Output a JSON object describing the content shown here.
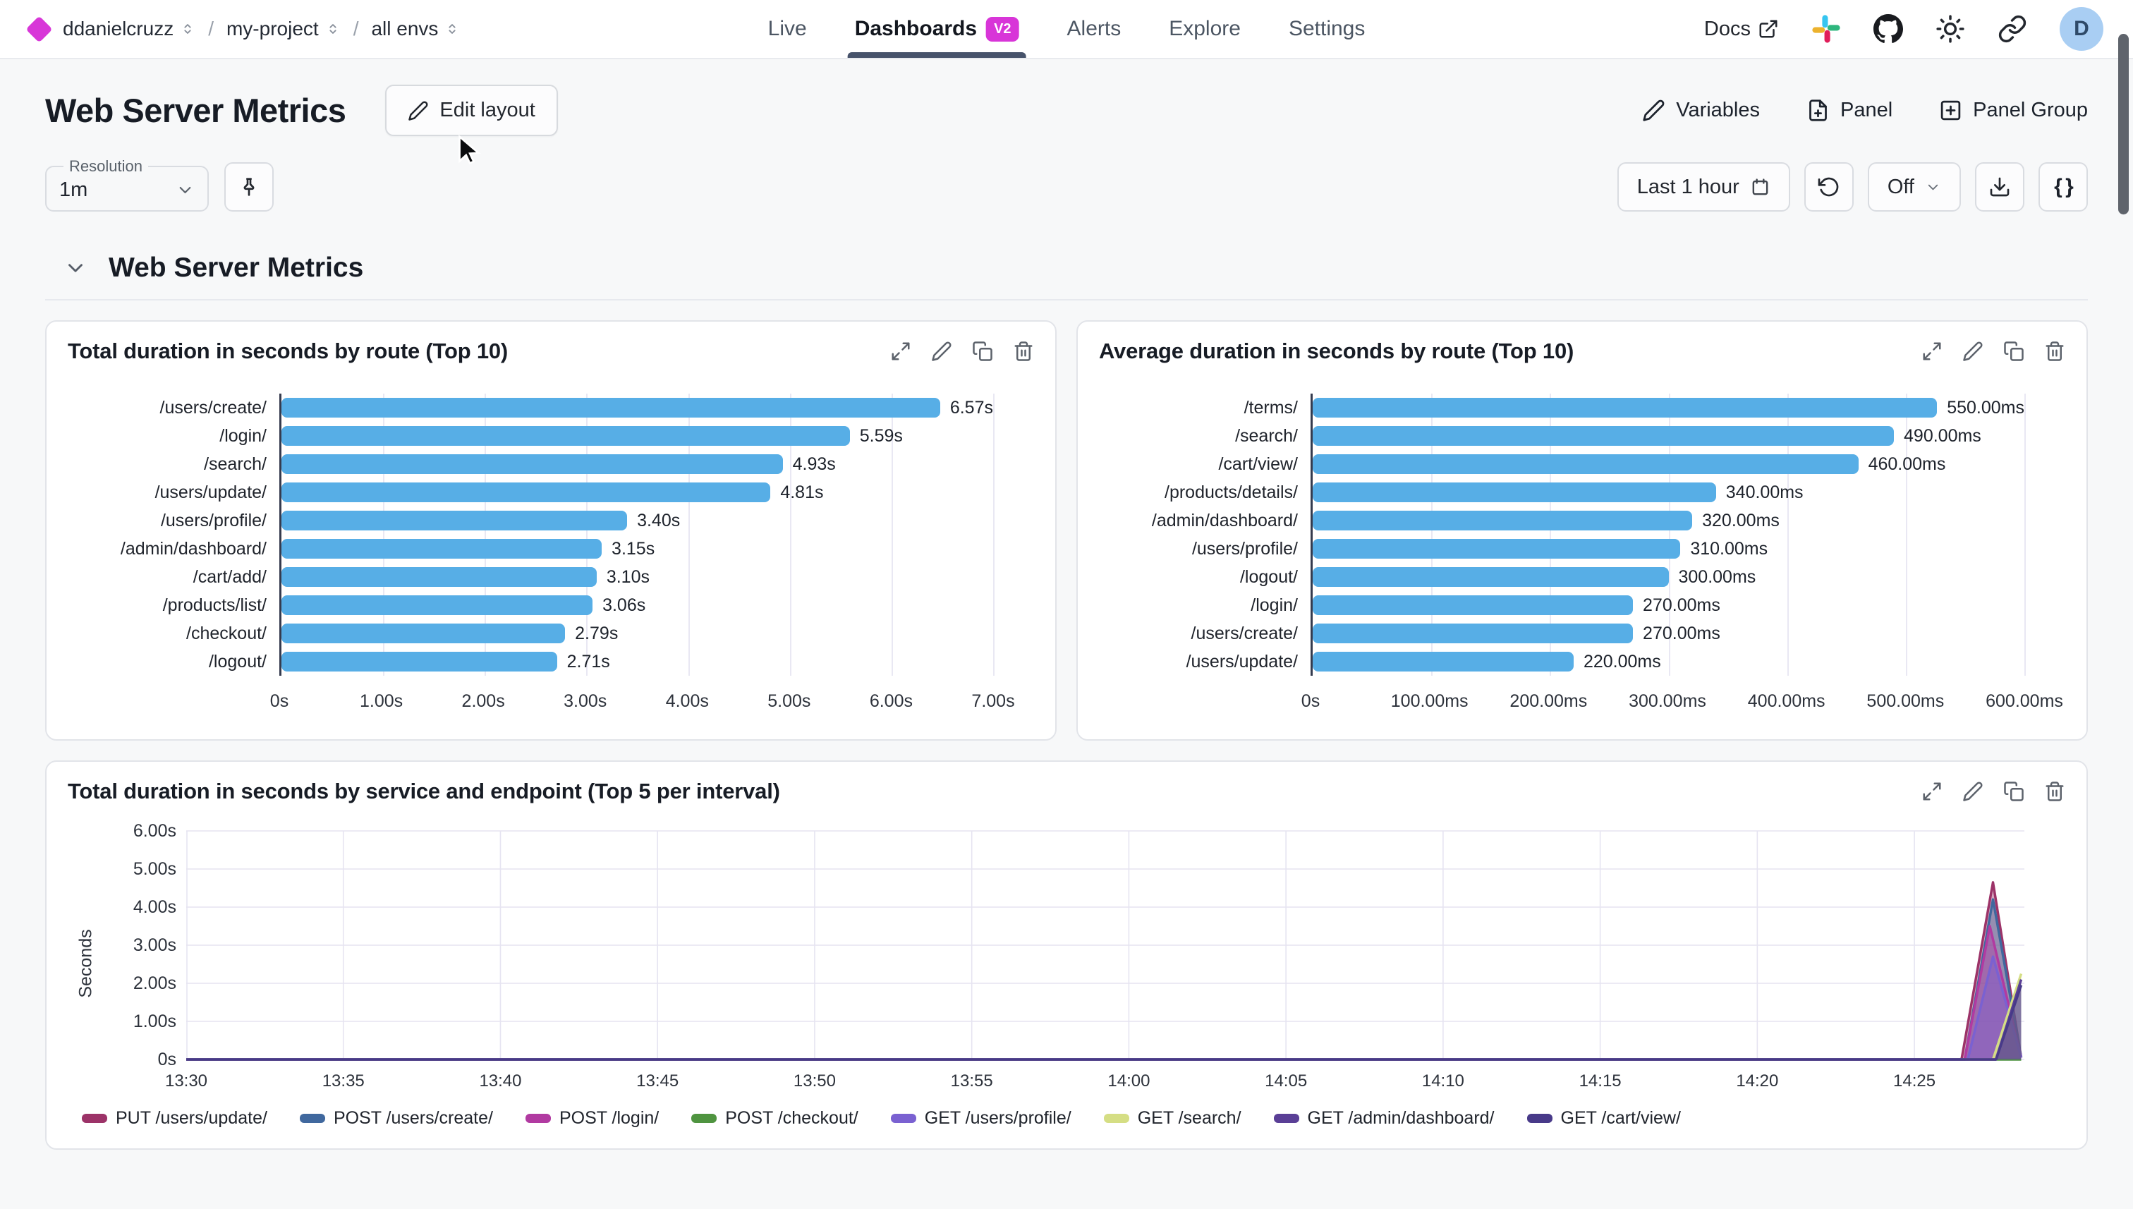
{
  "topbar": {
    "breadcrumb": [
      {
        "label": "ddanielcruzz"
      },
      {
        "label": "my-project"
      },
      {
        "label": "all envs"
      }
    ],
    "nav": {
      "items": [
        "Live",
        "Dashboards",
        "Alerts",
        "Explore",
        "Settings"
      ],
      "active": "Dashboards",
      "badge": "V2"
    },
    "docs_label": "Docs",
    "icons": [
      "external-link-icon",
      "slack-icon",
      "github-icon",
      "theme-sun-icon",
      "share-link-icon"
    ],
    "avatar_initial": "D"
  },
  "header": {
    "title": "Web Server Metrics",
    "edit_layout": "Edit layout",
    "actions": [
      "Variables",
      "Panel",
      "Panel Group"
    ]
  },
  "controls": {
    "resolution_label": "Resolution",
    "resolution_value": "1m",
    "time_range": "Last 1 hour",
    "auto_refresh": "Off",
    "braces": "{ }"
  },
  "section": {
    "title": "Web Server Metrics"
  },
  "panel_actions": [
    "expand",
    "edit",
    "duplicate",
    "delete"
  ],
  "colors": {
    "accent": "#d835d8",
    "bar_blue": "#57aee6",
    "nav_underline": "#47536b",
    "avatar_bg": "#a9cef3"
  },
  "chart_data": [
    {
      "type": "bar",
      "orientation": "horizontal",
      "title": "Total duration in seconds by route (Top 10)",
      "categories": [
        "/users/create/",
        "/login/",
        "/search/",
        "/users/update/",
        "/users/profile/",
        "/admin/dashboard/",
        "/cart/add/",
        "/products/list/",
        "/checkout/",
        "/logout/"
      ],
      "values": [
        6.57,
        5.59,
        4.93,
        4.81,
        3.4,
        3.15,
        3.1,
        3.06,
        2.79,
        2.71
      ],
      "value_labels": [
        "6.57s",
        "5.59s",
        "4.93s",
        "4.81s",
        "3.40s",
        "3.15s",
        "3.10s",
        "3.06s",
        "2.79s",
        "2.71s"
      ],
      "xlim": [
        0,
        7
      ],
      "x_ticks": [
        "0s",
        "1.00s",
        "2.00s",
        "3.00s",
        "4.00s",
        "5.00s",
        "6.00s",
        "7.00s"
      ],
      "bar_color": "#57aee6",
      "grid": "vertical"
    },
    {
      "type": "bar",
      "orientation": "horizontal",
      "title": "Average duration in seconds by route (Top 10)",
      "categories": [
        "/terms/",
        "/search/",
        "/cart/view/",
        "/products/details/",
        "/admin/dashboard/",
        "/users/profile/",
        "/logout/",
        "/login/",
        "/users/create/",
        "/users/update/"
      ],
      "values": [
        550,
        490,
        460,
        340,
        320,
        310,
        300,
        270,
        270,
        220
      ],
      "value_labels": [
        "550.00ms",
        "490.00ms",
        "460.00ms",
        "340.00ms",
        "320.00ms",
        "310.00ms",
        "300.00ms",
        "270.00ms",
        "270.00ms",
        "220.00ms"
      ],
      "xlim": [
        0,
        600
      ],
      "x_ticks": [
        "0s",
        "100.00ms",
        "200.00ms",
        "300.00ms",
        "400.00ms",
        "500.00ms",
        "600.00ms"
      ],
      "bar_color": "#57aee6",
      "grid": "vertical"
    },
    {
      "type": "area",
      "title": "Total duration in seconds by service and endpoint (Top 5 per interval)",
      "ylabel": "Seconds",
      "ylim": [
        0,
        6
      ],
      "y_tick_values": [
        0,
        1,
        2,
        3,
        4,
        5,
        6
      ],
      "y_tick_labels": [
        "0s",
        "1.00s",
        "2.00s",
        "3.00s",
        "4.00s",
        "5.00s",
        "6.00s"
      ],
      "x_domain_minutes": [
        0,
        58.5
      ],
      "x_start_time": "13:30",
      "x_tick_minutes": [
        0,
        5,
        10,
        15,
        20,
        25,
        30,
        35,
        40,
        45,
        50,
        55
      ],
      "x_tick_labels": [
        "13:30",
        "13:35",
        "13:40",
        "13:45",
        "13:50",
        "13:55",
        "14:00",
        "14:05",
        "14:10",
        "14:15",
        "14:20",
        "14:25"
      ],
      "grid": "both",
      "legend_position": "bottom",
      "series": [
        {
          "name": "PUT /users/update/",
          "color": "#9c3368",
          "points": [
            [
              0,
              0
            ],
            [
              56.5,
              0
            ],
            [
              57.5,
              4.65
            ],
            [
              58.4,
              0.05
            ]
          ]
        },
        {
          "name": "POST /users/create/",
          "color": "#40689e",
          "points": [
            [
              0,
              0
            ],
            [
              56.6,
              0
            ],
            [
              57.5,
              4.2
            ],
            [
              58.4,
              0.05
            ]
          ]
        },
        {
          "name": "POST /login/",
          "color": "#b13aa1",
          "points": [
            [
              0,
              0
            ],
            [
              56.6,
              0
            ],
            [
              57.4,
              3.5
            ],
            [
              58.4,
              0.05
            ]
          ]
        },
        {
          "name": "POST /checkout/",
          "color": "#4f9440",
          "points": [
            [
              0,
              0
            ],
            [
              58.4,
              0
            ]
          ]
        },
        {
          "name": "GET /users/profile/",
          "color": "#7a61d1",
          "points": [
            [
              0,
              0
            ],
            [
              56.7,
              0
            ],
            [
              57.5,
              2.7
            ],
            [
              58.4,
              0.05
            ]
          ]
        },
        {
          "name": "GET /search/",
          "color": "#d5de84",
          "points": [
            [
              0,
              0
            ],
            [
              57.5,
              0
            ],
            [
              58.4,
              2.25
            ]
          ]
        },
        {
          "name": "GET /admin/dashboard/",
          "color": "#5a3f96",
          "points": [
            [
              0,
              0
            ],
            [
              57.6,
              0
            ],
            [
              58.4,
              2.1
            ]
          ]
        },
        {
          "name": "GET /cart/view/",
          "color": "#483a89",
          "points": [
            [
              0,
              0
            ],
            [
              57.6,
              0
            ],
            [
              58.4,
              1.95
            ]
          ]
        }
      ]
    }
  ]
}
